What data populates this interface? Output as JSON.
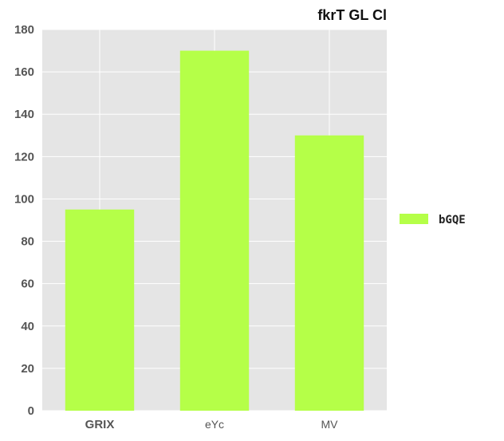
{
  "chart_data": {
    "type": "bar",
    "title": "fkrT GL Cl",
    "categories": [
      "GRIX",
      "eYc",
      "MV"
    ],
    "series": [
      {
        "name": "bGQE",
        "values": [
          95,
          170,
          130
        ],
        "color": "#b5ff48"
      }
    ],
    "y_ticks": [
      "0",
      "20",
      "40",
      "60",
      "80",
      "100",
      "120",
      "140",
      "160",
      "180"
    ],
    "ylim": [
      0,
      180
    ],
    "grid": true,
    "plot_background": "#e5e5e5",
    "grid_color": "#ffffff",
    "legend_position": "right"
  }
}
